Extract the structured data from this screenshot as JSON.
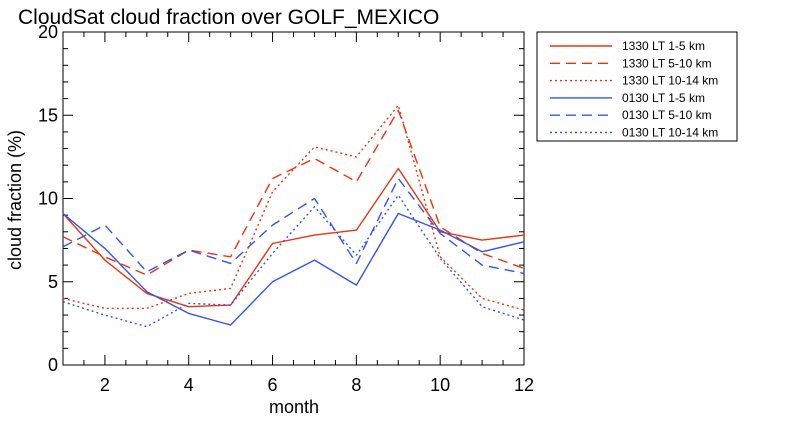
{
  "chart_data": {
    "type": "line",
    "title": "CloudSat cloud fraction over GOLF_MEXICO",
    "xlabel": "month",
    "ylabel": "cloud fraction (%)",
    "xlim": [
      1,
      12
    ],
    "ylim": [
      0,
      20
    ],
    "x_ticks": [
      2,
      4,
      6,
      8,
      10,
      12
    ],
    "y_ticks": [
      0,
      5,
      10,
      15,
      20
    ],
    "x": [
      1,
      2,
      3,
      4,
      5,
      6,
      7,
      8,
      9,
      10,
      11,
      12
    ],
    "legend_position": "outside-right-top",
    "series": [
      {
        "name": "1330 LT 1-5 km",
        "color": "#ee3311",
        "dash": "solid",
        "values": [
          9.1,
          6.3,
          4.3,
          3.5,
          3.6,
          7.3,
          7.8,
          8.1,
          11.8,
          8.0,
          7.5,
          7.8
        ]
      },
      {
        "name": "1330 LT 5-10 km",
        "color": "#ee3311",
        "dash": "dashed",
        "values": [
          7.7,
          6.5,
          5.4,
          6.9,
          6.5,
          11.2,
          12.4,
          11.0,
          15.3,
          8.3,
          6.7,
          5.8
        ]
      },
      {
        "name": "1330 LT 10-14 km",
        "color": "#ee3311",
        "dash": "dotted",
        "values": [
          4.0,
          3.4,
          3.4,
          4.3,
          4.6,
          10.4,
          13.1,
          12.5,
          15.6,
          6.5,
          4.0,
          3.3
        ]
      },
      {
        "name": "0130 LT 1-5 km",
        "color": "#3355ee",
        "dash": "solid",
        "values": [
          9.1,
          7.0,
          4.4,
          3.1,
          2.4,
          5.0,
          6.3,
          4.8,
          9.1,
          8.1,
          6.8,
          7.4
        ]
      },
      {
        "name": "0130 LT 5-10 km",
        "color": "#3355ee",
        "dash": "dashed",
        "values": [
          7.1,
          8.4,
          5.6,
          6.9,
          6.1,
          8.4,
          10.0,
          6.1,
          11.2,
          7.9,
          6.0,
          5.5
        ]
      },
      {
        "name": "0130 LT 10-14 km",
        "color": "#3355ee",
        "dash": "dotted",
        "values": [
          3.8,
          3.0,
          2.3,
          3.7,
          3.6,
          6.7,
          9.5,
          6.6,
          10.2,
          6.4,
          3.5,
          2.7
        ]
      }
    ]
  }
}
